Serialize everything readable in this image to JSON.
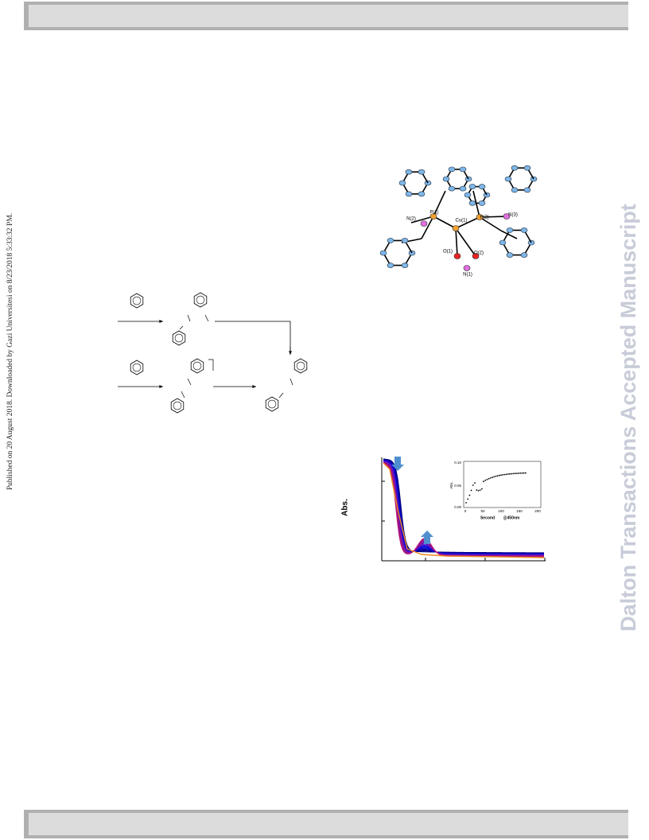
{
  "side_note": "Published on 20 August 2018. Downloaded by Gazi Universitesi on 8/23/2018 5:33:32 PM.",
  "watermark": "Dalton Transactions Accepted Manuscript",
  "crystal_structure": {
    "labels": [
      "N(2)",
      "P(1)",
      "Cu(1)",
      "P(2)",
      "N(3)",
      "O(1)",
      "O(2)",
      "N(1)"
    ]
  },
  "spectrum": {
    "y_label": "Abs.",
    "inset": {
      "y_label": "Abs.",
      "yticks": [
        "0.10",
        "0.05",
        "0.00"
      ],
      "xticks": [
        "0",
        "50",
        "100",
        "150",
        "200"
      ],
      "x_label": "Second",
      "note": "@450nm"
    }
  }
}
